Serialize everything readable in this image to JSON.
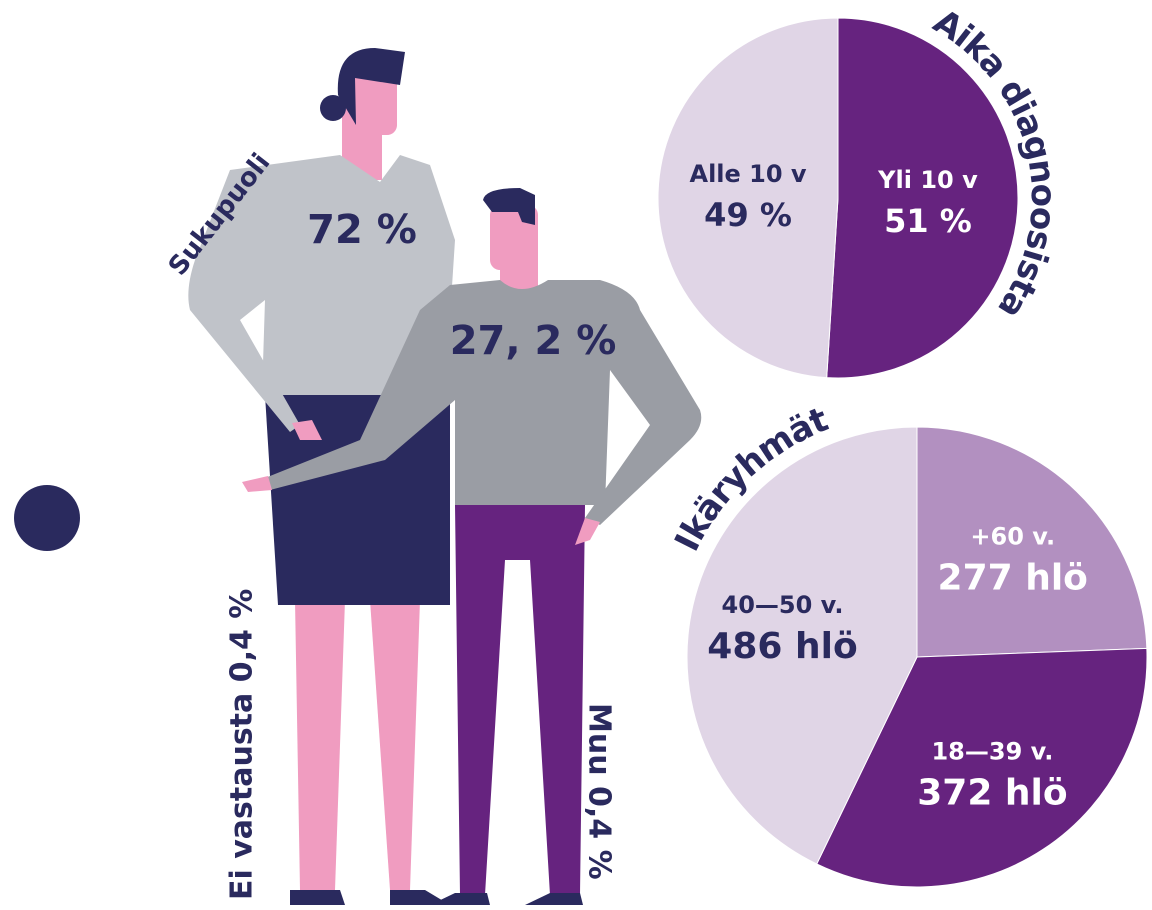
{
  "chart_data": [
    {
      "type": "pie",
      "title": "Aika diagnoosista",
      "categories": [
        "Yli 10 v",
        "Alle 10 v"
      ],
      "values": [
        51,
        49
      ],
      "value_labels": [
        "51 %",
        "49 %"
      ],
      "colors": [
        "#66237f",
        "#e0d5e6"
      ]
    },
    {
      "type": "pie",
      "title": "Ikäryhmät",
      "categories": [
        "+60 v.",
        "18—39 v.",
        "40—50 v."
      ],
      "values": [
        277,
        372,
        486
      ],
      "value_labels": [
        "277 hlö",
        "372 hlö",
        "486 hlö"
      ],
      "colors": [
        "#b290c0",
        "#66237f",
        "#e0d5e6"
      ]
    }
  ],
  "gender": {
    "title": "Sukupuoli",
    "women": "72 %",
    "men": "27, 2 %",
    "no_answer": "Ei vastausta 0,4 %",
    "other": "Muu 0,4 %"
  }
}
